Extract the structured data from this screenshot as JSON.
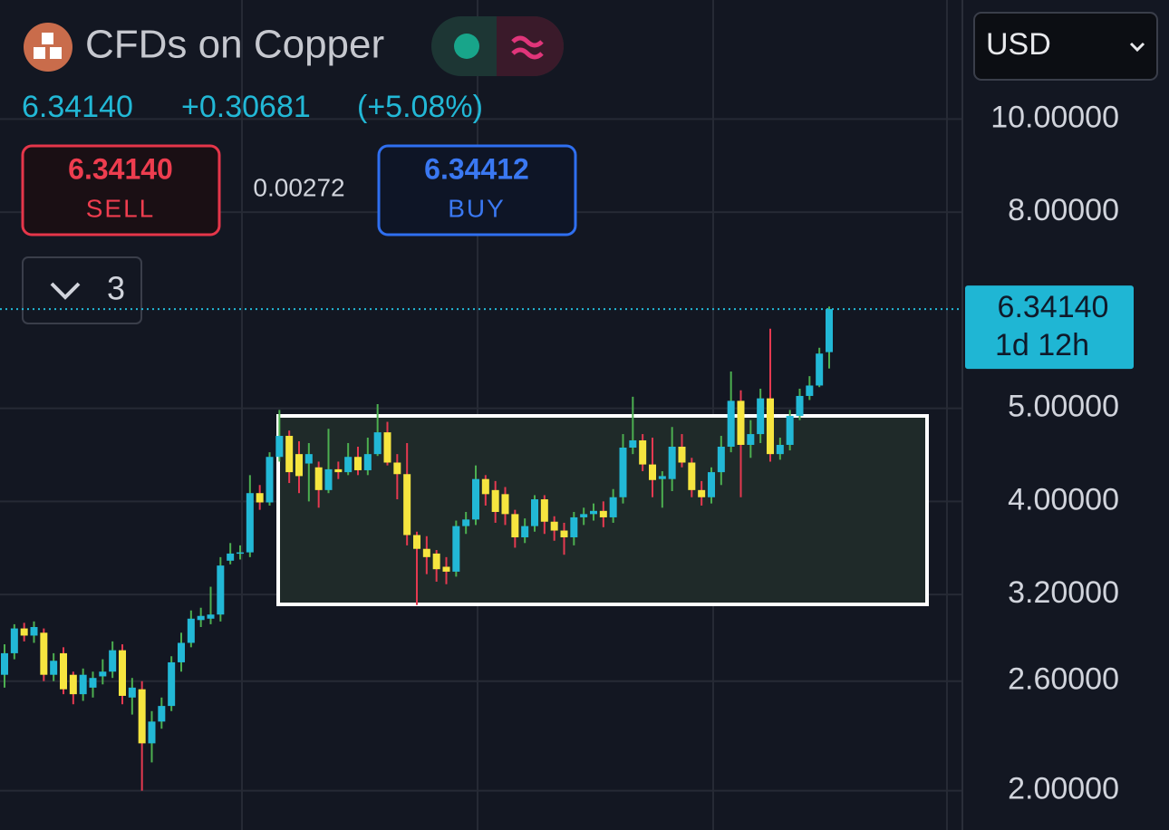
{
  "header": {
    "title": "CFDs on Copper",
    "price": "6.34140",
    "change": "+0.30681",
    "change_pct": "(+5.08%)"
  },
  "trade": {
    "sell_price": "6.34140",
    "sell_label": "SELL",
    "spread": "0.00272",
    "buy_price": "6.34412",
    "buy_label": "BUY",
    "quantity": "3"
  },
  "currency": "USD",
  "last_price": {
    "price": "6.34140",
    "countdown": "1d 12h"
  },
  "chart_data": {
    "type": "candlestick",
    "log_scale": true,
    "grid": true,
    "up_color": "#22b8d6",
    "down_color": "#f6e53f",
    "up_wick_color": "#4caf50",
    "down_wick_color": "#e53950",
    "ylim": [
      1.82,
      13.3
    ],
    "yticks": [
      {
        "value": 2,
        "label": "2.00000"
      },
      {
        "value": 2.6,
        "label": "2.60000"
      },
      {
        "value": 3.2,
        "label": "3.20000"
      },
      {
        "value": 4,
        "label": "4.00000"
      },
      {
        "value": 5,
        "label": "5.00000"
      },
      {
        "value": 8,
        "label": "8.00000"
      },
      {
        "value": 10,
        "label": "10.00000"
      }
    ],
    "categories": [
      null,
      null,
      null,
      null,
      null,
      null,
      null,
      null,
      null,
      null,
      null,
      null,
      null,
      null,
      null,
      null,
      null,
      null,
      null,
      null,
      null,
      null,
      null,
      null,
      null,
      null,
      null,
      null,
      null,
      null,
      null,
      null,
      null,
      null,
      null,
      null,
      null,
      null,
      null,
      null,
      null,
      null,
      null,
      null,
      null,
      null,
      null,
      null,
      null,
      null,
      null,
      null,
      null,
      null,
      null,
      null,
      null,
      null,
      null,
      null,
      null,
      null,
      null,
      null,
      null,
      null,
      null,
      null,
      null,
      null,
      null,
      null,
      null,
      null,
      null,
      null,
      null,
      null,
      null,
      null,
      null,
      null,
      null,
      null,
      null
    ],
    "open": [
      2.64,
      2.78,
      2.95,
      2.9,
      2.92,
      2.64,
      2.78,
      2.64,
      2.52,
      2.56,
      2.63,
      2.66,
      2.8,
      2.5,
      2.55,
      2.24,
      2.36,
      2.45,
      2.72,
      2.85,
      3.01,
      3.02,
      3.05,
      3.47,
      3.53,
      3.54,
      4.08,
      3.99,
      4.45,
      4.68,
      4.48,
      4.38,
      4.34,
      4.11,
      4.32,
      4.29,
      4.45,
      4.31,
      4.48,
      4.72,
      4.39,
      4.27,
      3.69,
      3.57,
      3.53,
      3.42,
      3.38,
      3.77,
      3.83,
      4.22,
      4.11,
      4.07,
      3.88,
      3.67,
      3.77,
      4.02,
      3.81,
      3.73,
      3.67,
      3.85,
      3.88,
      3.91,
      3.85,
      4.04,
      4.55,
      4.63,
      4.37,
      4.22,
      4.22,
      4.56,
      4.39,
      4.11,
      4.04,
      4.29,
      4.56,
      5.09,
      4.58,
      4.7,
      5.12,
      4.48,
      4.58,
      4.91,
      5.15,
      5.28,
      5.72
    ],
    "high": [
      2.84,
      2.98,
      2.99,
      3.0,
      2.95,
      2.78,
      2.82,
      2.66,
      2.68,
      2.66,
      2.74,
      2.86,
      2.84,
      2.62,
      2.6,
      2.42,
      2.5,
      2.76,
      2.92,
      3.08,
      3.1,
      3.26,
      3.5,
      3.62,
      3.6,
      4.26,
      4.16,
      4.5,
      4.98,
      4.74,
      4.62,
      4.6,
      4.4,
      4.76,
      4.4,
      4.6,
      4.56,
      4.66,
      5.05,
      4.84,
      4.48,
      4.6,
      3.72,
      3.68,
      3.56,
      3.5,
      3.82,
      3.9,
      4.36,
      4.26,
      4.2,
      4.14,
      3.92,
      3.84,
      4.06,
      4.06,
      3.86,
      3.8,
      3.9,
      3.94,
      3.98,
      4.0,
      4.12,
      4.7,
      5.14,
      4.7,
      4.66,
      4.3,
      4.78,
      4.7,
      4.44,
      4.2,
      4.34,
      4.68,
      5.46,
      5.22,
      4.86,
      5.24,
      6.05,
      4.66,
      4.98,
      5.24,
      5.4,
      5.78,
      6.38
    ],
    "low": [
      2.56,
      2.74,
      2.86,
      2.85,
      2.6,
      2.6,
      2.52,
      2.46,
      2.48,
      2.5,
      2.58,
      2.62,
      2.46,
      2.4,
      2.0,
      2.14,
      2.32,
      2.42,
      2.66,
      2.82,
      2.96,
      2.98,
      3.0,
      3.44,
      3.48,
      3.5,
      3.92,
      3.96,
      4.4,
      4.18,
      4.08,
      4.0,
      3.94,
      4.08,
      4.22,
      4.26,
      4.26,
      4.26,
      4.46,
      4.36,
      4.02,
      3.6,
      3.12,
      3.36,
      3.3,
      3.28,
      3.34,
      3.7,
      3.78,
      3.96,
      3.8,
      3.78,
      3.58,
      3.62,
      3.72,
      3.7,
      3.64,
      3.52,
      3.6,
      3.78,
      3.82,
      3.76,
      3.8,
      3.98,
      4.48,
      4.3,
      4.04,
      3.94,
      4.1,
      4.34,
      4.04,
      3.96,
      3.98,
      4.16,
      4.5,
      4.04,
      4.44,
      4.6,
      4.4,
      4.42,
      4.52,
      4.86,
      5.1,
      5.26,
      5.5
    ],
    "close": [
      2.78,
      2.95,
      2.9,
      2.96,
      2.64,
      2.73,
      2.55,
      2.52,
      2.64,
      2.62,
      2.66,
      2.8,
      2.51,
      2.56,
      2.24,
      2.36,
      2.45,
      2.72,
      2.85,
      3.02,
      3.04,
      3.05,
      3.43,
      3.53,
      3.54,
      4.08,
      3.99,
      4.45,
      4.68,
      4.29,
      4.25,
      4.48,
      4.11,
      4.32,
      4.29,
      4.45,
      4.31,
      4.48,
      4.72,
      4.39,
      4.27,
      3.69,
      3.57,
      3.5,
      3.4,
      3.38,
      3.77,
      3.83,
      4.22,
      4.07,
      3.9,
      3.88,
      3.67,
      3.77,
      4.02,
      3.81,
      3.73,
      3.67,
      3.85,
      3.88,
      3.91,
      3.85,
      4.04,
      4.55,
      4.63,
      4.37,
      4.21,
      4.25,
      4.56,
      4.39,
      4.11,
      4.04,
      4.29,
      4.56,
      5.09,
      4.58,
      4.7,
      5.12,
      4.48,
      4.58,
      4.91,
      5.15,
      5.28,
      5.7,
      6.3414
    ]
  }
}
